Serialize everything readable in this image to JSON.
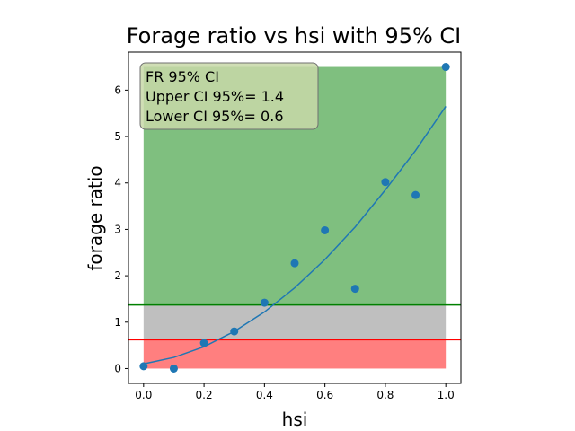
{
  "chart_data": {
    "type": "scatter",
    "title": "Forage ratio vs hsi with 95% CI",
    "xlabel": "hsi",
    "ylabel": "forage ratio",
    "xlim": [
      -0.05,
      1.05
    ],
    "ylim": [
      -0.32,
      6.82
    ],
    "xticks": [
      "0.0",
      "0.2",
      "0.4",
      "0.6",
      "0.8",
      "1.0"
    ],
    "yticks": [
      "0",
      "1",
      "2",
      "3",
      "4",
      "5",
      "6"
    ],
    "grid": false,
    "points": {
      "x": [
        0.0,
        0.1,
        0.2,
        0.3,
        0.4,
        0.5,
        0.6,
        0.7,
        0.8,
        0.9,
        1.0
      ],
      "y": [
        0.05,
        0.0,
        0.55,
        0.8,
        1.42,
        2.27,
        2.98,
        1.72,
        4.02,
        3.74,
        6.5
      ],
      "color": "#1f77b4"
    },
    "fit_line": {
      "x": [
        0.0,
        0.1,
        0.2,
        0.3,
        0.4,
        0.5,
        0.6,
        0.7,
        0.8,
        0.9,
        1.0
      ],
      "y": [
        0.1,
        0.24,
        0.47,
        0.8,
        1.22,
        1.74,
        2.35,
        3.05,
        3.85,
        4.7,
        5.65
      ],
      "color": "#1f77b4"
    },
    "regions": [
      {
        "y0": 1.37,
        "y1": 6.5,
        "x0": 0.0,
        "x1": 1.0,
        "color": "#7fbf7f"
      },
      {
        "y0": 0.62,
        "y1": 1.37,
        "x0": 0.0,
        "x1": 1.0,
        "color": "#bfbfbf"
      },
      {
        "y0": 0.0,
        "y1": 0.62,
        "x0": 0.0,
        "x1": 1.0,
        "color": "#ff7f7f"
      }
    ],
    "hlines": [
      {
        "y": 1.37,
        "color": "#008000"
      },
      {
        "y": 0.62,
        "color": "#ff0000"
      }
    ],
    "annotation": {
      "lines": [
        "FR 95% CI",
        "Upper CI 95%= 1.4",
        "Lower CI 95%= 0.6"
      ],
      "placement": "top-left"
    }
  }
}
